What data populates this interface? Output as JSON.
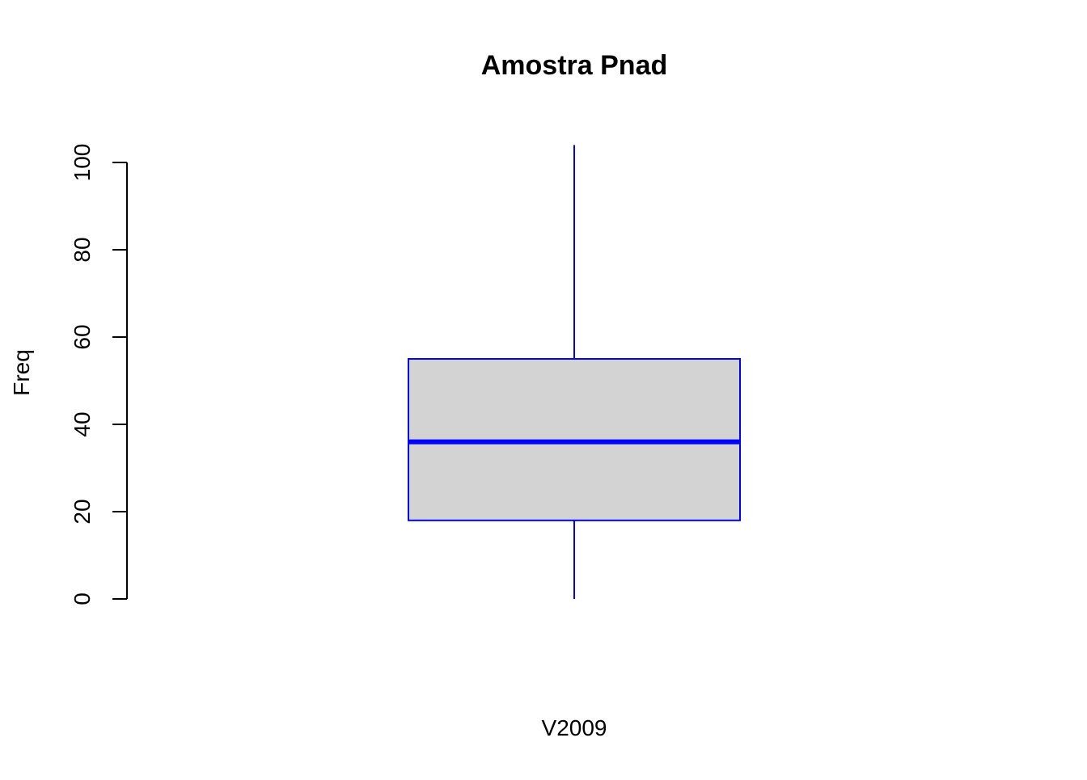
{
  "chart_data": {
    "type": "boxplot",
    "title": "Amostra Pnad",
    "xlabel": "V2009",
    "ylabel": "Freq",
    "ylim": [
      0,
      104
    ],
    "yticks": [
      0,
      20,
      40,
      60,
      80,
      100
    ],
    "ytick_labels": [
      "0",
      "20",
      "40",
      "60",
      "80",
      "100"
    ],
    "grid": false,
    "series": [
      {
        "name": "V2009",
        "whisker_low": 0,
        "q1": 18,
        "median": 36,
        "q3": 55,
        "whisker_high": 104
      }
    ],
    "colors": {
      "box_fill": "#d3d3d3",
      "box_border": "#0000ff",
      "axis": "#000000"
    }
  }
}
